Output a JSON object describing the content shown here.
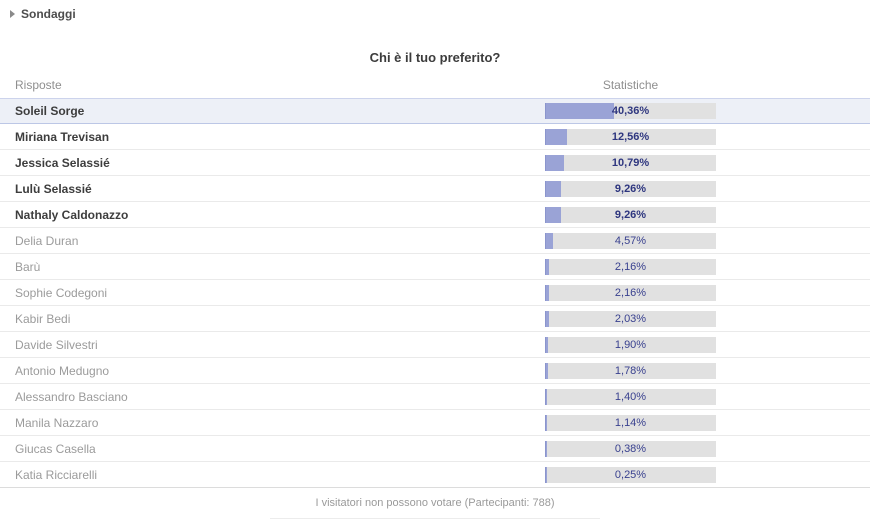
{
  "breadcrumb": {
    "label": "Sondaggi"
  },
  "poll": {
    "title": "Chi è il tuo preferito?",
    "columns": {
      "answers": "Risposte",
      "stats": "Statistiche"
    },
    "footer_note": "I visitatori non possono votare (Partecipanti: 788)",
    "participants": 788
  },
  "chart_data": {
    "type": "bar",
    "orientation": "horizontal",
    "title": "Chi è il tuo preferito?",
    "categories": [
      "Soleil Sorge",
      "Miriana Trevisan",
      "Jessica Selassié",
      "Lulù Selassié",
      "Nathaly Caldonazzo",
      "Delia Duran",
      "Barù",
      "Sophie Codegoni",
      "Kabir Bedi",
      "Davide Silvestri",
      "Antonio Medugno",
      "Alessandro Basciano",
      "Manila Nazzaro",
      "Giucas Casella",
      "Katia Ricciarelli"
    ],
    "values": [
      40.36,
      12.56,
      10.79,
      9.26,
      9.26,
      4.57,
      2.16,
      2.16,
      2.03,
      1.9,
      1.78,
      1.4,
      1.14,
      0.38,
      0.25
    ],
    "value_labels": [
      "40,36%",
      "12,56%",
      "10,79%",
      "9,26%",
      "9,26%",
      "4,57%",
      "2,16%",
      "2,16%",
      "2,03%",
      "1,90%",
      "1,78%",
      "1,40%",
      "1,14%",
      "0,38%",
      "0,25%"
    ],
    "xlabel": "",
    "ylabel": "",
    "xlim": [
      0,
      100
    ],
    "grid": false,
    "legend": false,
    "highlighted_index": 0,
    "bold_count": 5
  },
  "colors": {
    "bar_fill": "#9aa3d6",
    "bar_track": "#e1e1e1",
    "value_text": "#39418f",
    "highlight_row_bg": "#edf0f7",
    "highlight_row_border": "#bcc7e6",
    "bold_name_text": "#3d3d3d",
    "normal_name_text": "#9b9b9b",
    "header_text": "#8f8f8f"
  }
}
